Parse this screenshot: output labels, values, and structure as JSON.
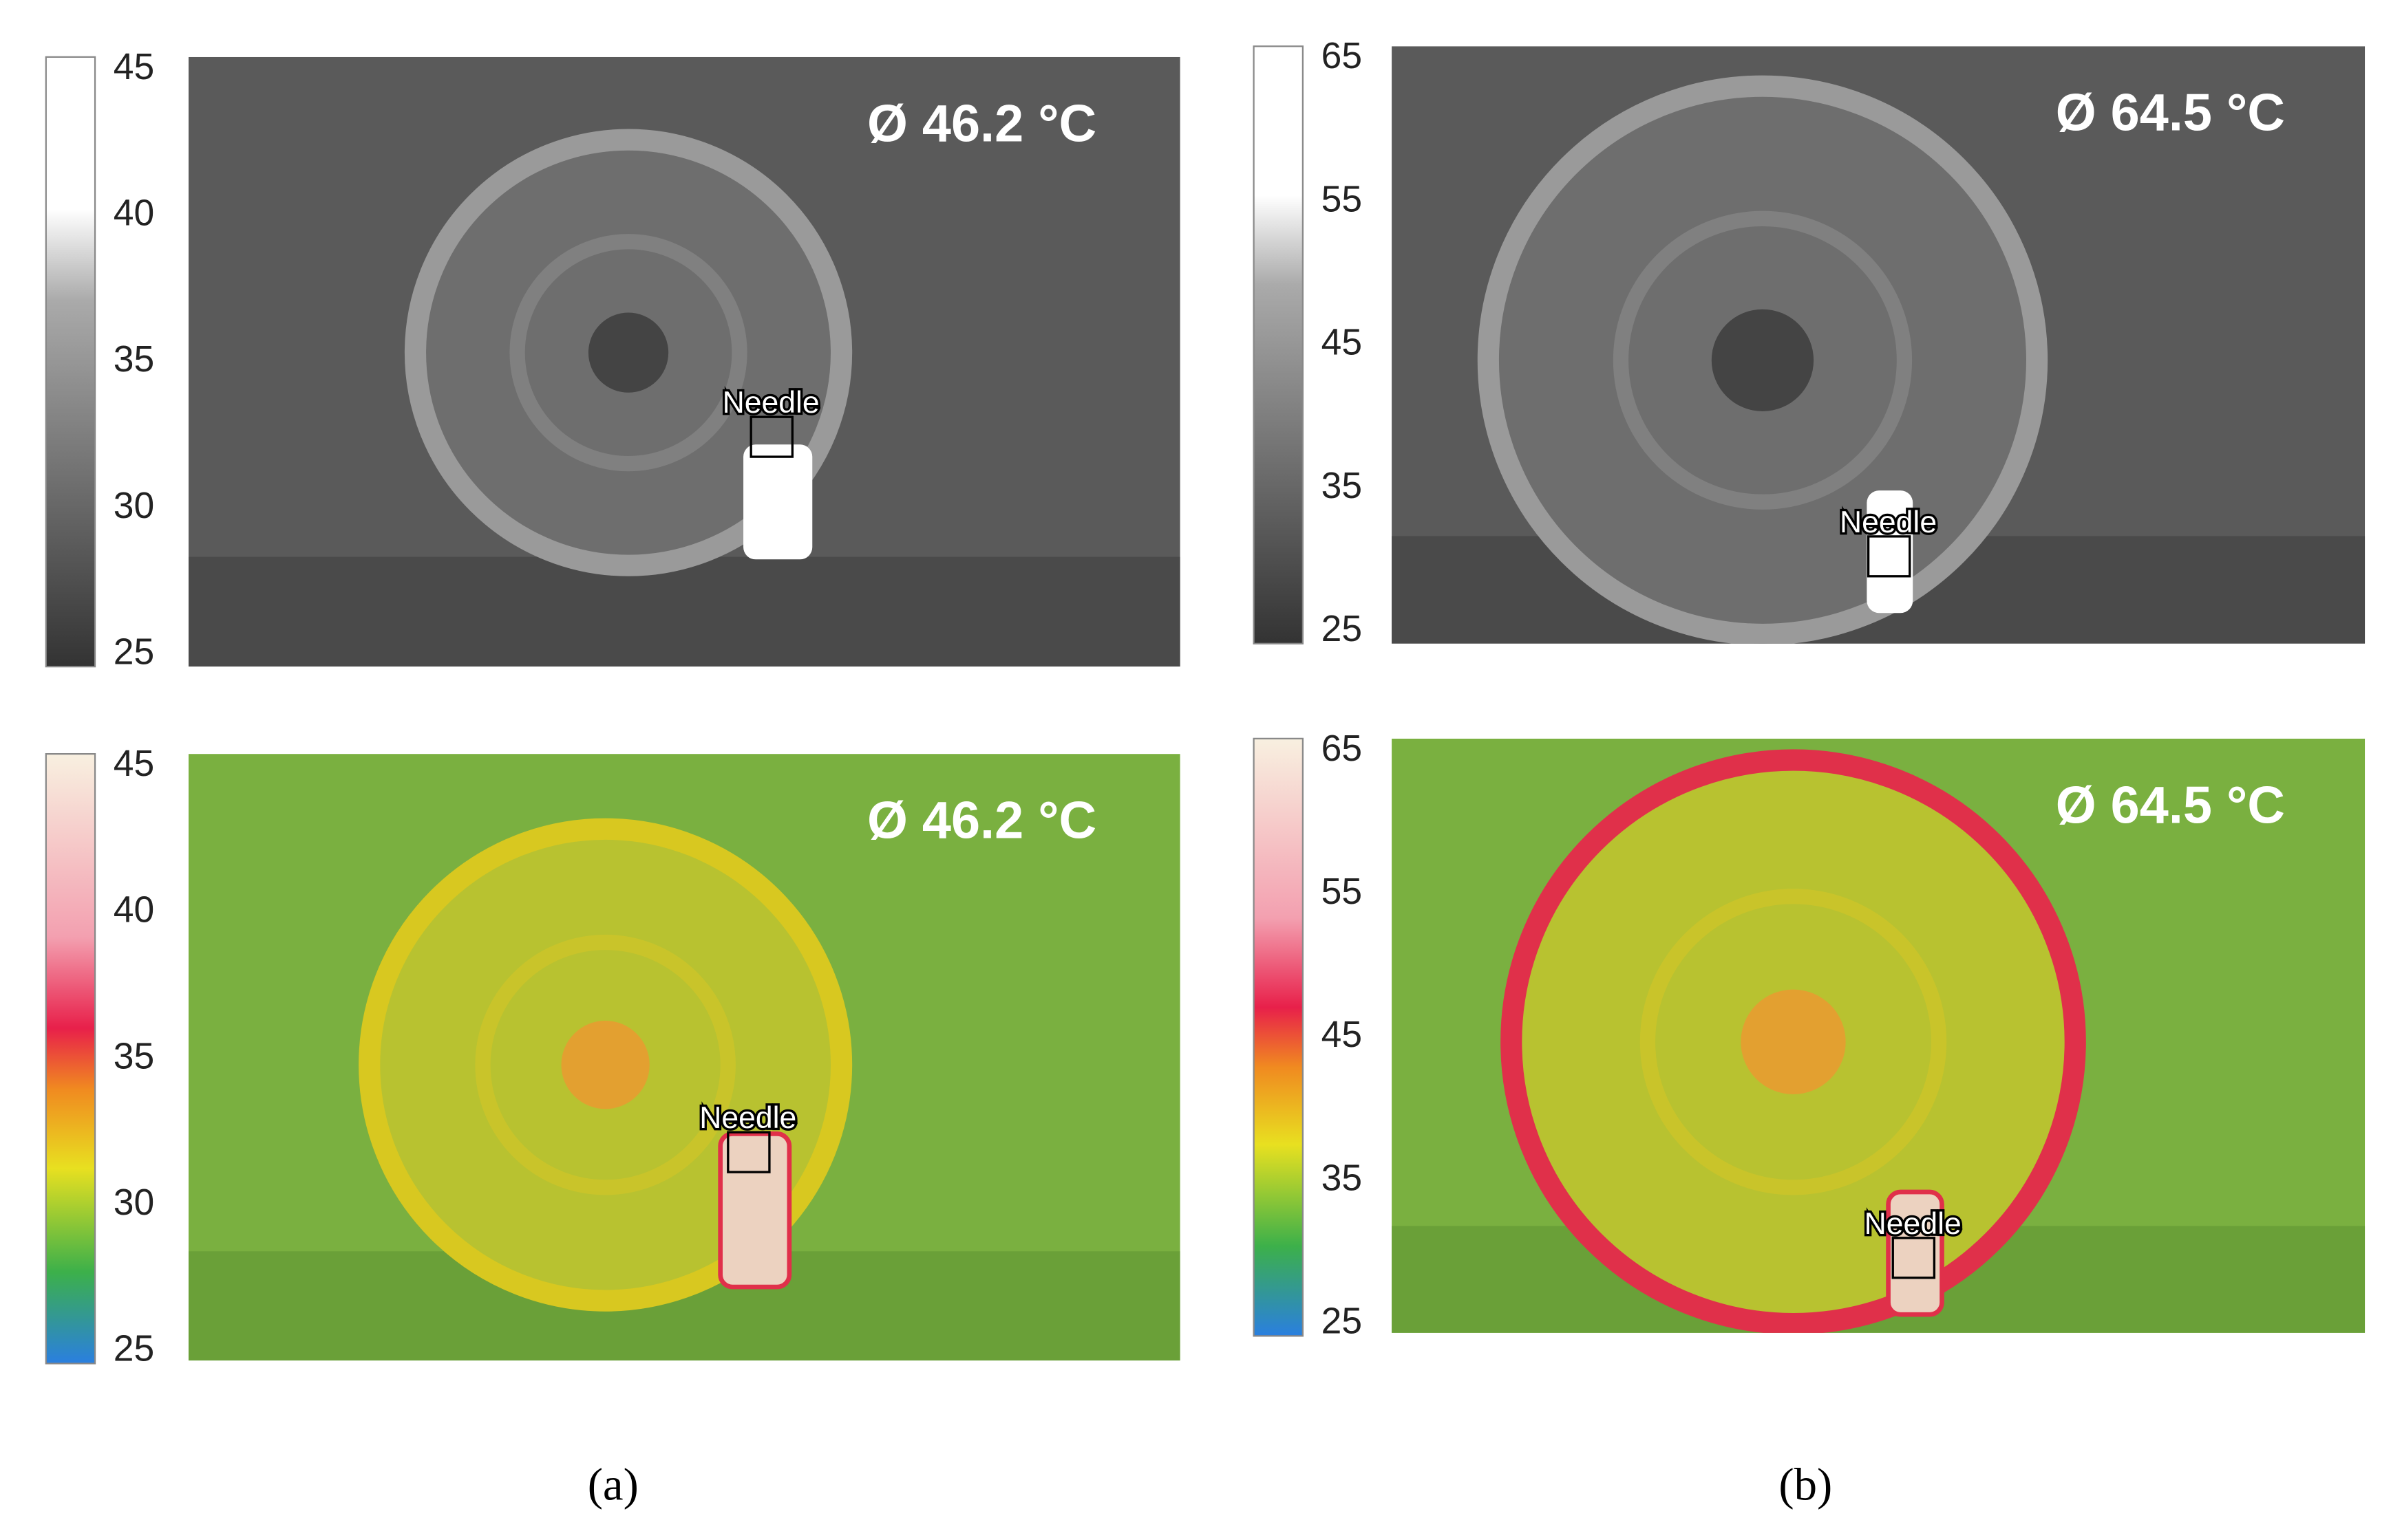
{
  "figures": [
    {
      "caption": "(a)",
      "images": [
        {
          "palette": "grayscale",
          "colorbar_ticks": [
            25,
            30,
            35,
            40,
            45
          ],
          "reading": "Ø 46.2 °C",
          "marker": "Needle"
        },
        {
          "palette": "rainbow",
          "colorbar_ticks": [
            25,
            30,
            35,
            40,
            45
          ],
          "reading": "Ø 46.2 °C",
          "marker": "Needle"
        }
      ]
    },
    {
      "caption": "(b)",
      "images": [
        {
          "palette": "grayscale",
          "colorbar_ticks": [
            25,
            35,
            45,
            55,
            65
          ],
          "reading": "Ø 64.5 °C",
          "marker": "Needle"
        },
        {
          "palette": "rainbow",
          "colorbar_ticks": [
            25,
            35,
            45,
            55,
            65
          ],
          "reading": "Ø 64.5 °C",
          "marker": "Needle"
        }
      ]
    }
  ]
}
